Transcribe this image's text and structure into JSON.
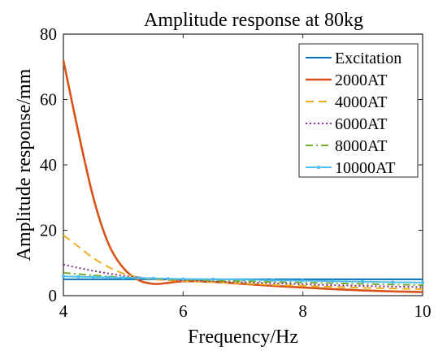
{
  "chart_data": {
    "type": "line",
    "title": "Amplitude response at 80kg",
    "xlabel": "Frequency/Hz",
    "ylabel": "Amplitude response/mm",
    "xlim": [
      4,
      10
    ],
    "ylim": [
      0,
      80
    ],
    "xticks": [
      4,
      6,
      8,
      10
    ],
    "yticks": [
      0,
      20,
      40,
      60,
      80
    ],
    "grid": false,
    "legend_position": "top-right",
    "x": [
      4.0,
      4.25,
      4.5,
      4.75,
      5.0,
      5.25,
      5.5,
      5.75,
      6.0,
      6.5,
      7.0,
      7.5,
      8.0,
      8.5,
      9.0,
      9.5,
      10.0
    ],
    "series": [
      {
        "name": "Excitation",
        "color": "#0072BD",
        "style": "solid",
        "marker": "none",
        "values": [
          5.0,
          5.0,
          5.0,
          5.0,
          5.0,
          5.0,
          5.0,
          5.0,
          5.0,
          5.0,
          5.0,
          5.0,
          5.0,
          5.0,
          5.0,
          5.0,
          5.0
        ]
      },
      {
        "name": "2000AT",
        "color": "#D95319",
        "style": "solid",
        "marker": "none",
        "values": [
          72.0,
          50.0,
          30.0,
          16.0,
          8.5,
          4.8,
          3.6,
          3.9,
          4.4,
          4.2,
          3.6,
          3.0,
          2.5,
          2.0,
          1.6,
          1.3,
          1.1
        ]
      },
      {
        "name": "4000AT",
        "color": "#EDB120",
        "style": "dashed",
        "marker": "none",
        "values": [
          18.5,
          15.0,
          11.5,
          8.8,
          6.8,
          5.6,
          5.0,
          4.7,
          4.5,
          4.1,
          3.7,
          3.3,
          3.0,
          2.7,
          2.4,
          2.2,
          2.0
        ]
      },
      {
        "name": "6000AT",
        "color": "#7E2F8E",
        "style": "dotted",
        "marker": "none",
        "values": [
          9.5,
          8.5,
          7.6,
          6.8,
          6.1,
          5.6,
          5.2,
          4.9,
          4.7,
          4.4,
          4.1,
          3.8,
          3.5,
          3.2,
          3.0,
          2.8,
          2.6
        ]
      },
      {
        "name": "8000AT",
        "color": "#77AC30",
        "style": "dashdot",
        "marker": "none",
        "values": [
          7.0,
          6.6,
          6.2,
          5.9,
          5.6,
          5.4,
          5.2,
          5.0,
          4.9,
          4.6,
          4.4,
          4.2,
          4.0,
          3.8,
          3.6,
          3.4,
          3.2
        ]
      },
      {
        "name": "10000AT",
        "color": "#4DBEEE",
        "style": "solid",
        "marker": "point",
        "values": [
          5.9,
          5.8,
          5.7,
          5.6,
          5.5,
          5.4,
          5.3,
          5.2,
          5.1,
          5.0,
          4.9,
          4.7,
          4.6,
          4.4,
          4.3,
          4.1,
          4.0
        ]
      }
    ]
  }
}
